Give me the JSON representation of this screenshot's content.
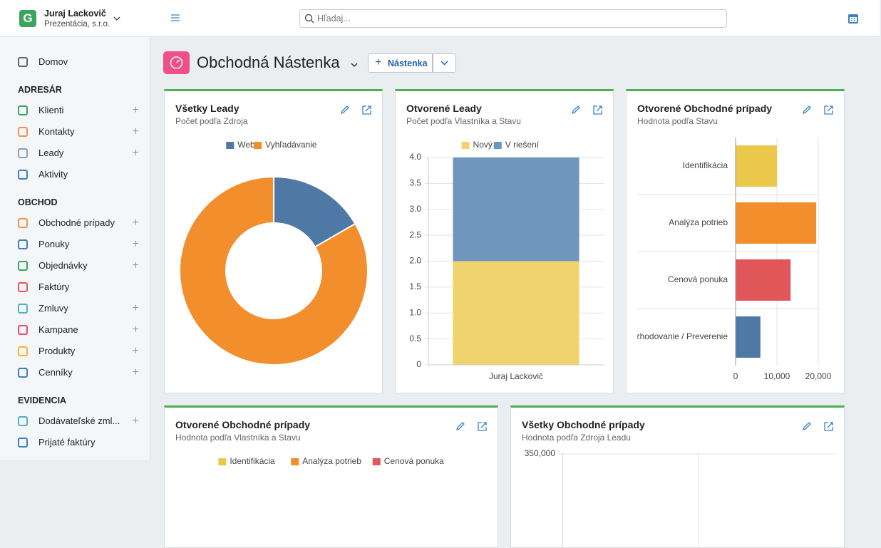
{
  "header": {
    "logo": "G",
    "user_name": "Juraj Lackovič",
    "company": "Prezentácia, s.r.o.",
    "search_placeholder": "Hľadaj..."
  },
  "sidebar": {
    "home": "Domov",
    "sections": [
      {
        "title": "ADRESÁR",
        "items": [
          "Klienti",
          "Kontakty",
          "Leady",
          "Aktivity"
        ]
      },
      {
        "title": "OBCHOD",
        "items": [
          "Obchodné prípady",
          "Ponuky",
          "Objednávky",
          "Faktúry",
          "Zmluvy",
          "Kampane",
          "Produkty",
          "Cenníky"
        ]
      },
      {
        "title": "EVIDENCIA",
        "items": [
          "Dodávateľské zml...",
          "Prijaté faktúry"
        ]
      }
    ]
  },
  "page": {
    "title": "Obchodná Nástenka",
    "button": "Nástenka"
  },
  "chart_data": [
    {
      "type": "pie",
      "title": "Všetky Leady",
      "subtitle": "Počet podľa Zdroja",
      "categories": [
        "Web",
        "Vyhľadávanie"
      ],
      "values": [
        1,
        5
      ],
      "colors": [
        "#4e79a7",
        "#f28e2c"
      ],
      "donut": true
    },
    {
      "type": "bar",
      "stacked": true,
      "title": "Otvorené Leady",
      "subtitle": "Počet podľa Vlastníka a Stavu",
      "categories": [
        "Juraj Lackovič"
      ],
      "series": [
        {
          "name": "Nový",
          "color": "#f0d36c",
          "values": [
            2
          ]
        },
        {
          "name": "V riešení",
          "color": "#7096be",
          "values": [
            2
          ]
        }
      ],
      "ylim": [
        0,
        4
      ],
      "yticks": [
        0,
        0.5,
        {
          "value": 1,
          "label": "1.0"
        },
        1.5,
        {
          "value": 2,
          "label": "2.0"
        },
        2.5,
        {
          "value": 3,
          "label": "3.0"
        },
        3.5,
        {
          "value": 4,
          "label": "4.0"
        }
      ],
      "grid": true
    },
    {
      "type": "hbar",
      "title": "Otvorené Obchodné prípady",
      "subtitle": "Hodnota podľa Stavu",
      "categories": [
        "Identifikácia",
        "Analýza potrieb",
        "Cenová ponuka",
        "Rozhodovanie / Preverenie"
      ],
      "values": [
        10000,
        19500,
        13300,
        6000
      ],
      "colors": [
        "#ebc84a",
        "#f28e2c",
        "#e15759",
        "#4e79a7"
      ],
      "xlim": [
        0,
        20000
      ],
      "xticks": [
        0,
        {
          "value": 10000,
          "label": "10,000"
        },
        {
          "value": 20000,
          "label": "20,000"
        }
      ],
      "grid": true
    },
    {
      "type": "bar",
      "title": "Otvorené Obchodné prípady",
      "subtitle": "Hodnota podľa Vlastníka a Stavu",
      "series": [
        {
          "name": "Identifikácia",
          "color": "#ebc84a"
        },
        {
          "name": "Analýza potrieb",
          "color": "#f28e2c"
        },
        {
          "name": "Cenová ponuka",
          "color": "#e15759"
        }
      ]
    },
    {
      "type": "bar",
      "title": "Všetky Obchodné prípady",
      "subtitle": "Hodnota podľa Zdroja Leadu",
      "ylim": [
        0,
        350000
      ],
      "yticks": [
        {
          "value": 350000,
          "label": "350,000"
        }
      ],
      "grid": true
    }
  ]
}
